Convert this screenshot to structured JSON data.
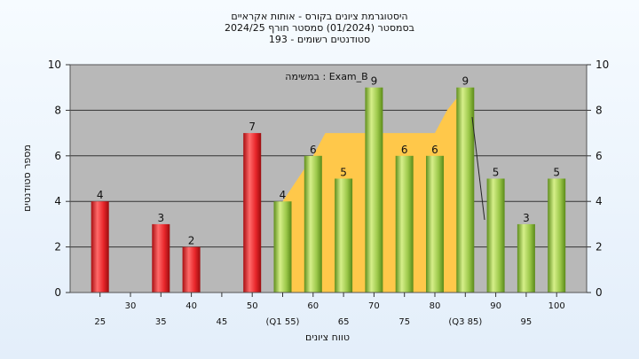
{
  "chart_data": {
    "type": "bar",
    "title_lines": [
      "היסטוגרמת ציונים בקורס - אותות אקראיים",
      "בסמסטר  (01/2024)  סמסטר חורף 2024/25",
      "סטודנטים רשומים - 193"
    ],
    "xlabel": "טווח ציונים",
    "ylabel": "מספר סטודנטים",
    "ylim": [
      0,
      10
    ],
    "yticks": [
      0,
      2,
      4,
      6,
      8,
      10
    ],
    "x_ticks": [
      {
        "x": 25,
        "label": "25",
        "row": 1
      },
      {
        "x": 30,
        "label": "30",
        "row": 0
      },
      {
        "x": 35,
        "label": "35",
        "row": 1
      },
      {
        "x": 40,
        "label": "40",
        "row": 0
      },
      {
        "x": 45,
        "label": "45",
        "row": 1
      },
      {
        "x": 50,
        "label": "50",
        "row": 0
      },
      {
        "x": 55,
        "label": "(Q1 55)",
        "row": 1
      },
      {
        "x": 60,
        "label": "60",
        "row": 0
      },
      {
        "x": 65,
        "label": "65",
        "row": 1
      },
      {
        "x": 70,
        "label": "70",
        "row": 0
      },
      {
        "x": 75,
        "label": "75",
        "row": 1
      },
      {
        "x": 80,
        "label": "80",
        "row": 0
      },
      {
        "x": 85,
        "label": "(Q3 85)",
        "row": 1
      },
      {
        "x": 90,
        "label": "90",
        "row": 0
      },
      {
        "x": 95,
        "label": "95",
        "row": 1
      },
      {
        "x": 100,
        "label": "100",
        "row": 0
      }
    ],
    "bars": [
      {
        "x": 25,
        "value": 4,
        "color": "red"
      },
      {
        "x": 35,
        "value": 3,
        "color": "red"
      },
      {
        "x": 40,
        "value": 2,
        "color": "red"
      },
      {
        "x": 50,
        "value": 7,
        "color": "red"
      },
      {
        "x": 55,
        "value": 4,
        "color": "green"
      },
      {
        "x": 60,
        "value": 6,
        "color": "green"
      },
      {
        "x": 65,
        "value": 5,
        "color": "green"
      },
      {
        "x": 70,
        "value": 9,
        "color": "green"
      },
      {
        "x": 75,
        "value": 6,
        "color": "green"
      },
      {
        "x": 80,
        "value": 6,
        "color": "green"
      },
      {
        "x": 85,
        "value": 9,
        "color": "green"
      },
      {
        "x": 90,
        "value": 5,
        "color": "green"
      },
      {
        "x": 95,
        "value": 3,
        "color": "green"
      },
      {
        "x": 100,
        "value": 5,
        "color": "green"
      }
    ],
    "iqr_area": {
      "x": [
        55,
        60,
        62,
        65,
        70,
        75,
        80,
        82,
        85
      ],
      "y": [
        4,
        6,
        7,
        7,
        7,
        7,
        7,
        8,
        9
      ],
      "color": "#ffc84a"
    },
    "annotation": "במשימה : Exam_B",
    "grid": "horizontal",
    "colors": {
      "plot_background": "#b8b8b8",
      "red_bar": "#e8262a",
      "green_bar": "#8cbf3f",
      "area": "#ffc84a"
    }
  }
}
